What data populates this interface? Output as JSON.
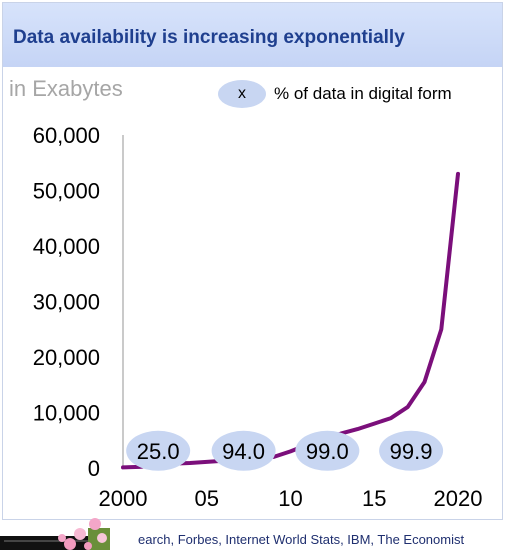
{
  "header": {
    "title": "Data availability is increasing exponentially"
  },
  "units_label": "in Exabytes",
  "legend": {
    "marker": "x",
    "text": "% of data in digital form"
  },
  "source": {
    "text": "earch, Forbes, Internet World Stats, IBM, The Economist"
  },
  "colors": {
    "line": "#7b0f7b",
    "bubble": "#c8d6f2",
    "title": "#1f3f8f",
    "header_bg": "#cdd9f6"
  },
  "chart_data": {
    "type": "line",
    "title": "Data availability is increasing exponentially",
    "ylabel": "in Exabytes",
    "xlabel": "",
    "x_tick_labels": [
      "2000",
      "05",
      "10",
      "15",
      "2020"
    ],
    "x_tick_values": [
      2000,
      2005,
      2010,
      2015,
      2020
    ],
    "y_tick_labels": [
      "0",
      "10,000",
      "20,000",
      "30,000",
      "40,000",
      "50,000",
      "60,000"
    ],
    "y_tick_values": [
      0,
      10000,
      20000,
      30000,
      40000,
      50000,
      60000
    ],
    "xlim": [
      2000,
      2020
    ],
    "ylim": [
      0,
      60000
    ],
    "grid": false,
    "series": [
      {
        "x": [
          2000,
          2001,
          2002,
          2003,
          2004,
          2005,
          2006,
          2007,
          2008,
          2009,
          2010,
          2011,
          2012,
          2013,
          2014,
          2015,
          2016,
          2017,
          2018,
          2019,
          2020
        ],
        "values": [
          100,
          200,
          500,
          800,
          900,
          1100,
          1300,
          1600,
          1800,
          2000,
          3000,
          4200,
          5200,
          6200,
          7000,
          8000,
          9000,
          11000,
          15500,
          25000,
          53000
        ]
      }
    ],
    "annotations": [
      {
        "label": "25.0",
        "x": 2002.1,
        "y": 3100
      },
      {
        "label": "94.0",
        "x": 2007.2,
        "y": 3100
      },
      {
        "label": "99.0",
        "x": 2012.2,
        "y": 3100
      },
      {
        "label": "99.9",
        "x": 2017.2,
        "y": 3100
      }
    ]
  }
}
